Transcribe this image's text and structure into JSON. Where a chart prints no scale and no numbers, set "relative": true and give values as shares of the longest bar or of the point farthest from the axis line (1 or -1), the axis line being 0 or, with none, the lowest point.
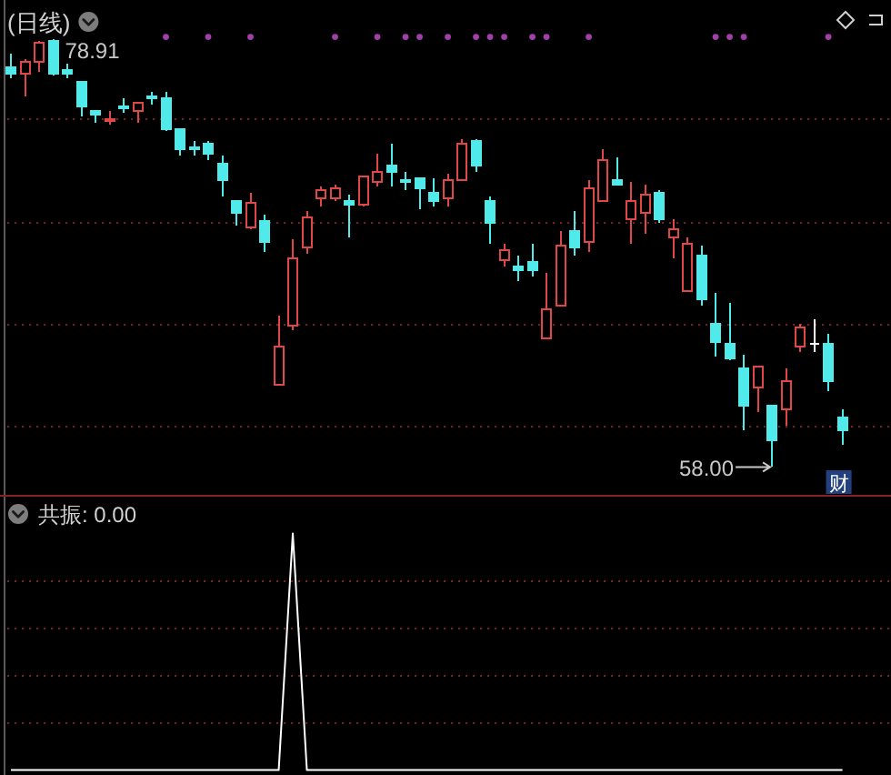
{
  "chart_data": [
    {
      "type": "candlestick",
      "title": "(日线)",
      "categories": [
        null,
        null,
        null,
        null,
        null,
        null,
        null,
        null,
        null,
        null,
        null,
        null,
        null,
        null,
        null,
        null,
        null,
        null,
        null,
        null,
        null,
        null,
        null,
        null,
        null,
        null,
        null,
        null,
        null,
        null,
        null,
        null,
        null,
        null,
        null,
        null,
        null,
        null,
        null,
        null,
        null,
        null,
        null,
        null,
        null,
        null,
        null,
        null,
        null,
        null,
        null,
        null,
        null,
        null,
        null,
        null,
        null,
        null,
        null,
        null
      ],
      "ohlc": [
        [
          77.5,
          78.2,
          77.0,
          77.2
        ],
        [
          77.2,
          77.9,
          76.1,
          77.8
        ],
        [
          77.8,
          78.8,
          77.3,
          78.7
        ],
        [
          78.8,
          78.91,
          77.1,
          77.2
        ],
        [
          77.4,
          77.7,
          77.0,
          77.2
        ],
        [
          76.8,
          76.8,
          75.1,
          75.6
        ],
        [
          75.4,
          75.4,
          74.8,
          75.2
        ],
        [
          74.9,
          75.4,
          74.7,
          75.0
        ],
        [
          75.6,
          76.0,
          75.3,
          75.5
        ],
        [
          75.4,
          75.8,
          74.8,
          75.8
        ],
        [
          76.1,
          76.3,
          75.7,
          76.0
        ],
        [
          76.0,
          76.3,
          74.4,
          74.5
        ],
        [
          74.5,
          74.5,
          73.2,
          73.5
        ],
        [
          73.6,
          73.9,
          73.2,
          73.5
        ],
        [
          73.8,
          73.9,
          73.0,
          73.3
        ],
        [
          72.8,
          73.2,
          71.2,
          72.0
        ],
        [
          71.0,
          71.0,
          69.8,
          70.4
        ],
        [
          69.7,
          71.4,
          69.6,
          70.9
        ],
        [
          70.0,
          70.3,
          68.5,
          69.0
        ],
        [
          62.0,
          65.4,
          62.0,
          63.9
        ],
        [
          64.9,
          69.1,
          64.7,
          68.2
        ],
        [
          68.7,
          70.5,
          68.4,
          70.2
        ],
        [
          71.1,
          71.7,
          70.7,
          71.5
        ],
        [
          71.1,
          71.8,
          71.0,
          71.6
        ],
        [
          71.0,
          71.3,
          69.2,
          70.8
        ],
        [
          70.8,
          72.2,
          70.7,
          72.2
        ],
        [
          71.9,
          73.3,
          71.7,
          72.4
        ],
        [
          72.7,
          73.8,
          71.7,
          72.4
        ],
        [
          72.0,
          72.4,
          71.5,
          71.9
        ],
        [
          72.1,
          72.1,
          70.6,
          71.6
        ],
        [
          71.4,
          72.1,
          70.7,
          71.0
        ],
        [
          71.1,
          72.3,
          70.7,
          72.0
        ],
        [
          72.0,
          74.0,
          72.0,
          73.8
        ],
        [
          73.9,
          74.0,
          72.4,
          72.7
        ],
        [
          71.0,
          71.2,
          68.9,
          69.9
        ],
        [
          68.1,
          68.9,
          67.8,
          68.6
        ],
        [
          67.8,
          68.3,
          67.1,
          67.6
        ],
        [
          68.0,
          68.9,
          67.3,
          67.6
        ],
        [
          64.3,
          67.5,
          64.3,
          65.7
        ],
        [
          65.9,
          69.5,
          65.9,
          68.8
        ],
        [
          69.5,
          70.5,
          68.3,
          68.7
        ],
        [
          69.0,
          72.0,
          68.5,
          71.6
        ],
        [
          71.0,
          73.5,
          71.0,
          73.0
        ],
        [
          72.0,
          73.1,
          71.8,
          71.8
        ],
        [
          70.1,
          71.9,
          68.9,
          71.0
        ],
        [
          70.4,
          71.8,
          69.4,
          71.3
        ],
        [
          71.4,
          71.5,
          69.9,
          70.1
        ],
        [
          69.2,
          70.1,
          68.2,
          69.6
        ],
        [
          66.6,
          69.2,
          66.6,
          68.9
        ],
        [
          68.3,
          68.8,
          65.9,
          66.2
        ],
        [
          65.0,
          66.5,
          63.4,
          64.1
        ],
        [
          64.0,
          66.0,
          63.2,
          63.3
        ],
        [
          62.8,
          63.5,
          59.8,
          61.0
        ],
        [
          61.9,
          62.9,
          60.7,
          62.9
        ],
        [
          61.0,
          61.0,
          58.0,
          59.3
        ],
        [
          60.8,
          62.8,
          60.0,
          62.2
        ],
        [
          63.9,
          65.0,
          63.6,
          64.8
        ],
        [
          64.0,
          65.2,
          63.6,
          64.0
        ],
        [
          64.0,
          64.5,
          61.7,
          62.2
        ],
        [
          60.4,
          60.8,
          59.1,
          59.8
        ]
      ],
      "colors": [
        "#50eaea",
        "#e04848",
        "#e04848",
        "#50eaea",
        "#50eaea",
        "#50eaea",
        "#50eaea",
        "#e04848",
        "#50eaea",
        "#e04848",
        "#50eaea",
        "#50eaea",
        "#50eaea",
        "#50eaea",
        "#50eaea",
        "#50eaea",
        "#50eaea",
        "#e04848",
        "#50eaea",
        "#e04848",
        "#e04848",
        "#e04848",
        "#e04848",
        "#e04848",
        "#50eaea",
        "#e04848",
        "#e04848",
        "#50eaea",
        "#50eaea",
        "#50eaea",
        "#50eaea",
        "#e04848",
        "#e04848",
        "#50eaea",
        "#50eaea",
        "#e04848",
        "#50eaea",
        "#50eaea",
        "#e04848",
        "#e04848",
        "#50eaea",
        "#e04848",
        "#e04848",
        "#50eaea",
        "#e04848",
        "#e04848",
        "#50eaea",
        "#e04848",
        "#e04848",
        "#50eaea",
        "#50eaea",
        "#50eaea",
        "#50eaea",
        "#e04848",
        "#50eaea",
        "#e04848",
        "#e04848",
        "#ffffff",
        "#50eaea",
        "#50eaea"
      ],
      "series": [
        {
          "type": "scatter",
          "color": "#a040a8",
          "values": [
            null,
            null,
            null,
            null,
            null,
            null,
            null,
            null,
            null,
            null,
            null,
            79.0,
            null,
            null,
            79.0,
            null,
            null,
            79.0,
            null,
            null,
            null,
            null,
            null,
            79.0,
            null,
            null,
            79.0,
            null,
            79.0,
            79.0,
            null,
            79.0,
            null,
            79.0,
            79.0,
            79.0,
            null,
            79.0,
            79.0,
            null,
            null,
            79.0,
            null,
            null,
            null,
            null,
            null,
            null,
            null,
            null,
            79.0,
            79.0,
            79.0,
            null,
            null,
            null,
            null,
            null,
            79.0,
            null
          ]
        }
      ],
      "marker": "circle",
      "yticks": [
        {
          "value": 60,
          "label": null
        },
        {
          "value": 65,
          "label": null
        },
        {
          "value": 70,
          "label": null
        },
        {
          "value": 75,
          "label": null
        }
      ],
      "grid": "y",
      "annotations": [
        "78.91",
        "58.00",
        "财"
      ]
    },
    {
      "type": "line",
      "title": "共振: 0.00",
      "relative": true,
      "categories": [
        null,
        null,
        null,
        null,
        null,
        null,
        null,
        null,
        null,
        null,
        null,
        null,
        null,
        null,
        null,
        null,
        null,
        null,
        null,
        null,
        null,
        null,
        null,
        null,
        null,
        null,
        null,
        null,
        null,
        null,
        null,
        null,
        null,
        null,
        null,
        null,
        null,
        null,
        null,
        null,
        null,
        null,
        null,
        null,
        null,
        null,
        null,
        null,
        null,
        null,
        null,
        null,
        null,
        null,
        null,
        null,
        null,
        null,
        null,
        null
      ],
      "series": [
        {
          "color": "#ffffff",
          "values": [
            0,
            0,
            0,
            0,
            0,
            0,
            0,
            0,
            0,
            0,
            0,
            0,
            0,
            0,
            0,
            0,
            0,
            0,
            0,
            0,
            1,
            0,
            0,
            0,
            0,
            0,
            0,
            0,
            0,
            0,
            0,
            0,
            0,
            0,
            0,
            0,
            0,
            0,
            0,
            0,
            0,
            0,
            0,
            0,
            0,
            0,
            0,
            0,
            0,
            0,
            0,
            0,
            0,
            0,
            0,
            0,
            0,
            0,
            0,
            0
          ]
        }
      ],
      "ref_lines": [
        {
          "axis": "y",
          "value": 0.2,
          "color": "#7a2222",
          "line_style": "dotted"
        },
        {
          "axis": "y",
          "value": 0.4,
          "color": "#7a2222",
          "line_style": "dotted"
        },
        {
          "axis": "y",
          "value": 0.6,
          "color": "#7a2222",
          "line_style": "dotted"
        },
        {
          "axis": "y",
          "value": 0.8,
          "color": "#7a2222",
          "line_style": "dotted"
        }
      ]
    }
  ]
}
